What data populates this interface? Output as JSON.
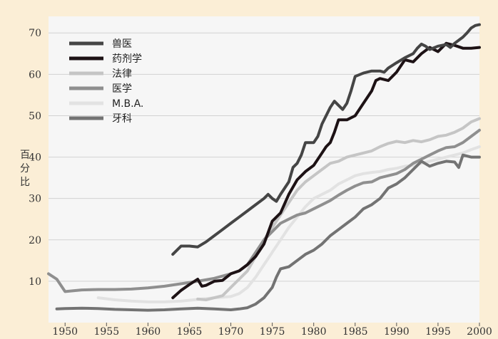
{
  "chart_data": {
    "type": "line",
    "title": "",
    "xlabel": "",
    "ylabel": "百分比",
    "xlim": [
      1948,
      2000
    ],
    "ylim": [
      0,
      74
    ],
    "xticks": [
      1950,
      1955,
      1960,
      1965,
      1970,
      1975,
      1980,
      1985,
      1990,
      1995,
      2000
    ],
    "yticks": [
      10,
      20,
      30,
      40,
      50,
      60,
      70
    ],
    "grid": true,
    "legend_position": "top-left",
    "series": [
      {
        "name": "兽医",
        "color": "#454545",
        "points": [
          [
            1963,
            16.5
          ],
          [
            1964,
            18.5
          ],
          [
            1965,
            18.5
          ],
          [
            1966,
            18.3
          ],
          [
            1967,
            19.5
          ],
          [
            1968,
            21
          ],
          [
            1969,
            22.5
          ],
          [
            1970,
            24
          ],
          [
            1971,
            25.5
          ],
          [
            1972,
            27
          ],
          [
            1973,
            28.5
          ],
          [
            1974,
            30
          ],
          [
            1974.5,
            31
          ],
          [
            1975,
            30
          ],
          [
            1975.5,
            29.3
          ],
          [
            1976,
            31
          ],
          [
            1977,
            34
          ],
          [
            1977.5,
            37.5
          ],
          [
            1978,
            38.5
          ],
          [
            1978.5,
            40.5
          ],
          [
            1979,
            43.5
          ],
          [
            1980,
            43.5
          ],
          [
            1980.5,
            45
          ],
          [
            1981,
            48
          ],
          [
            1982,
            52
          ],
          [
            1982.5,
            53.5
          ],
          [
            1983,
            52.5
          ],
          [
            1983.5,
            51.5
          ],
          [
            1984,
            53
          ],
          [
            1984.5,
            56
          ],
          [
            1985,
            59.5
          ],
          [
            1986,
            60.3
          ],
          [
            1987,
            60.8
          ],
          [
            1988,
            60.8
          ],
          [
            1988.5,
            60.5
          ],
          [
            1989,
            61.5
          ],
          [
            1990,
            62.8
          ],
          [
            1991,
            64
          ],
          [
            1992,
            65
          ],
          [
            1992.5,
            66.3
          ],
          [
            1993,
            67.3
          ],
          [
            1993.5,
            66.8
          ],
          [
            1994,
            66
          ],
          [
            1995,
            66.8
          ],
          [
            1996,
            67.2
          ],
          [
            1996.5,
            66.5
          ],
          [
            1997,
            67.5
          ],
          [
            1998,
            69
          ],
          [
            1998.5,
            70
          ],
          [
            1999,
            71.2
          ],
          [
            1999.5,
            71.8
          ],
          [
            2000,
            72
          ]
        ]
      },
      {
        "name": "药剂学",
        "color": "#1d1215",
        "points": [
          [
            1963,
            6
          ],
          [
            1964,
            7.8
          ],
          [
            1965,
            9.2
          ],
          [
            1966,
            10.5
          ],
          [
            1966.5,
            8.8
          ],
          [
            1967,
            9
          ],
          [
            1968,
            10
          ],
          [
            1969,
            10.2
          ],
          [
            1970,
            11.8
          ],
          [
            1971,
            12.5
          ],
          [
            1972,
            14
          ],
          [
            1973,
            16
          ],
          [
            1974,
            19
          ],
          [
            1975,
            24.5
          ],
          [
            1976,
            26.5
          ],
          [
            1977,
            31
          ],
          [
            1978,
            34.5
          ],
          [
            1979,
            36.5
          ],
          [
            1980,
            38
          ],
          [
            1981,
            41
          ],
          [
            1981.5,
            42.5
          ],
          [
            1982,
            43.5
          ],
          [
            1982.5,
            46
          ],
          [
            1983,
            49
          ],
          [
            1984,
            49
          ],
          [
            1985,
            50
          ],
          [
            1986,
            53
          ],
          [
            1987,
            56
          ],
          [
            1987.5,
            58.5
          ],
          [
            1988,
            59
          ],
          [
            1989,
            58.5
          ],
          [
            1990,
            60.5
          ],
          [
            1991,
            63.5
          ],
          [
            1992,
            63
          ],
          [
            1993,
            65
          ],
          [
            1994,
            66.5
          ],
          [
            1995,
            65.5
          ],
          [
            1996,
            67.5
          ],
          [
            1997,
            67
          ],
          [
            1998,
            66.3
          ],
          [
            1999,
            66.3
          ],
          [
            2000,
            66.5
          ]
        ]
      },
      {
        "name": "法律",
        "color": "#c5c5c5",
        "points": [
          [
            1966,
            5.7
          ],
          [
            1967,
            5.5
          ],
          [
            1968,
            6
          ],
          [
            1969,
            6.5
          ],
          [
            1970,
            8.5
          ],
          [
            1971,
            10.5
          ],
          [
            1972,
            12.5
          ],
          [
            1973,
            16
          ],
          [
            1974,
            20
          ],
          [
            1975,
            23
          ],
          [
            1976,
            26
          ],
          [
            1977,
            29
          ],
          [
            1978,
            32
          ],
          [
            1979,
            34
          ],
          [
            1980,
            35.5
          ],
          [
            1981,
            37
          ],
          [
            1982,
            38.5
          ],
          [
            1983,
            39
          ],
          [
            1984,
            40
          ],
          [
            1985,
            40.5
          ],
          [
            1986,
            41
          ],
          [
            1987,
            41.5
          ],
          [
            1988,
            42.5
          ],
          [
            1989,
            43.3
          ],
          [
            1990,
            43.8
          ],
          [
            1991,
            43.5
          ],
          [
            1992,
            44
          ],
          [
            1993,
            43.7
          ],
          [
            1994,
            44.2
          ],
          [
            1995,
            45
          ],
          [
            1996,
            45.3
          ],
          [
            1997,
            46
          ],
          [
            1998,
            47
          ],
          [
            1999,
            48.5
          ],
          [
            2000,
            49.3
          ]
        ]
      },
      {
        "name": "医学",
        "color": "#8f8f8f",
        "points": [
          [
            1948,
            11.8
          ],
          [
            1949,
            10.5
          ],
          [
            1950,
            7.5
          ],
          [
            1952,
            7.9
          ],
          [
            1954,
            8
          ],
          [
            1956,
            8
          ],
          [
            1958,
            8.1
          ],
          [
            1960,
            8.4
          ],
          [
            1962,
            8.8
          ],
          [
            1964,
            9.4
          ],
          [
            1966,
            10
          ],
          [
            1968,
            10.7
          ],
          [
            1970,
            11.8
          ],
          [
            1971,
            12.5
          ],
          [
            1972,
            14
          ],
          [
            1973,
            17
          ],
          [
            1974,
            20
          ],
          [
            1975,
            22
          ],
          [
            1976,
            24
          ],
          [
            1977,
            25
          ],
          [
            1978,
            26
          ],
          [
            1979,
            26.5
          ],
          [
            1980,
            27.5
          ],
          [
            1981,
            28.5
          ],
          [
            1982,
            29.5
          ],
          [
            1983,
            30.8
          ],
          [
            1984,
            32
          ],
          [
            1985,
            33
          ],
          [
            1986,
            33.8
          ],
          [
            1987,
            34
          ],
          [
            1988,
            35
          ],
          [
            1989,
            35.5
          ],
          [
            1990,
            36
          ],
          [
            1991,
            37
          ],
          [
            1992,
            38.5
          ],
          [
            1993,
            39.5
          ],
          [
            1994,
            40.5
          ],
          [
            1995,
            41.5
          ],
          [
            1996,
            42.3
          ],
          [
            1997,
            42.5
          ],
          [
            1998,
            43.5
          ],
          [
            1999,
            45
          ],
          [
            2000,
            46.5
          ]
        ]
      },
      {
        "name": "M.B.A.",
        "color": "#e2e2e2",
        "points": [
          [
            1954,
            6
          ],
          [
            1956,
            5.5
          ],
          [
            1958,
            5.2
          ],
          [
            1960,
            5
          ],
          [
            1962,
            5
          ],
          [
            1964,
            5.2
          ],
          [
            1966,
            5.6
          ],
          [
            1968,
            6
          ],
          [
            1970,
            6.3
          ],
          [
            1971,
            7
          ],
          [
            1972,
            8.5
          ],
          [
            1973,
            11
          ],
          [
            1974,
            14
          ],
          [
            1975,
            17
          ],
          [
            1976,
            20
          ],
          [
            1977,
            23
          ],
          [
            1978,
            25.5
          ],
          [
            1979,
            28
          ],
          [
            1980,
            30
          ],
          [
            1981,
            31
          ],
          [
            1982,
            32
          ],
          [
            1983,
            33.5
          ],
          [
            1984,
            34.5
          ],
          [
            1985,
            35.5
          ],
          [
            1986,
            36
          ],
          [
            1987,
            36.3
          ],
          [
            1988,
            36.5
          ],
          [
            1989,
            37
          ],
          [
            1990,
            37.3
          ],
          [
            1991,
            37.8
          ],
          [
            1992,
            38
          ],
          [
            1993,
            38.5
          ],
          [
            1994,
            39
          ],
          [
            1995,
            39.5
          ],
          [
            1996,
            40
          ],
          [
            1997,
            40.5
          ],
          [
            1998,
            41
          ],
          [
            1999,
            41.8
          ],
          [
            2000,
            42.5
          ]
        ]
      },
      {
        "name": "牙科",
        "color": "#737373",
        "points": [
          [
            1949,
            3.3
          ],
          [
            1950,
            3.4
          ],
          [
            1952,
            3.5
          ],
          [
            1954,
            3.4
          ],
          [
            1956,
            3.2
          ],
          [
            1958,
            3.1
          ],
          [
            1960,
            3
          ],
          [
            1962,
            3.1
          ],
          [
            1964,
            3.3
          ],
          [
            1966,
            3.5
          ],
          [
            1968,
            3.3
          ],
          [
            1970,
            3.1
          ],
          [
            1971,
            3.3
          ],
          [
            1972,
            3.6
          ],
          [
            1973,
            4.5
          ],
          [
            1974,
            6
          ],
          [
            1975,
            8.5
          ],
          [
            1975.5,
            11
          ],
          [
            1976,
            13
          ],
          [
            1977,
            13.5
          ],
          [
            1978,
            15
          ],
          [
            1979,
            16.5
          ],
          [
            1980,
            17.5
          ],
          [
            1981,
            19
          ],
          [
            1982,
            21
          ],
          [
            1983,
            22.5
          ],
          [
            1984,
            24
          ],
          [
            1985,
            25.5
          ],
          [
            1986,
            27.5
          ],
          [
            1987,
            28.5
          ],
          [
            1988,
            30
          ],
          [
            1989,
            32.5
          ],
          [
            1990,
            33.5
          ],
          [
            1991,
            35
          ],
          [
            1992,
            37
          ],
          [
            1993,
            39
          ],
          [
            1994,
            37.8
          ],
          [
            1995,
            38.5
          ],
          [
            1996,
            39
          ],
          [
            1997,
            38.8
          ],
          [
            1997.5,
            37.5
          ],
          [
            1998,
            40.5
          ],
          [
            1999,
            40
          ],
          [
            2000,
            40
          ]
        ]
      }
    ]
  }
}
